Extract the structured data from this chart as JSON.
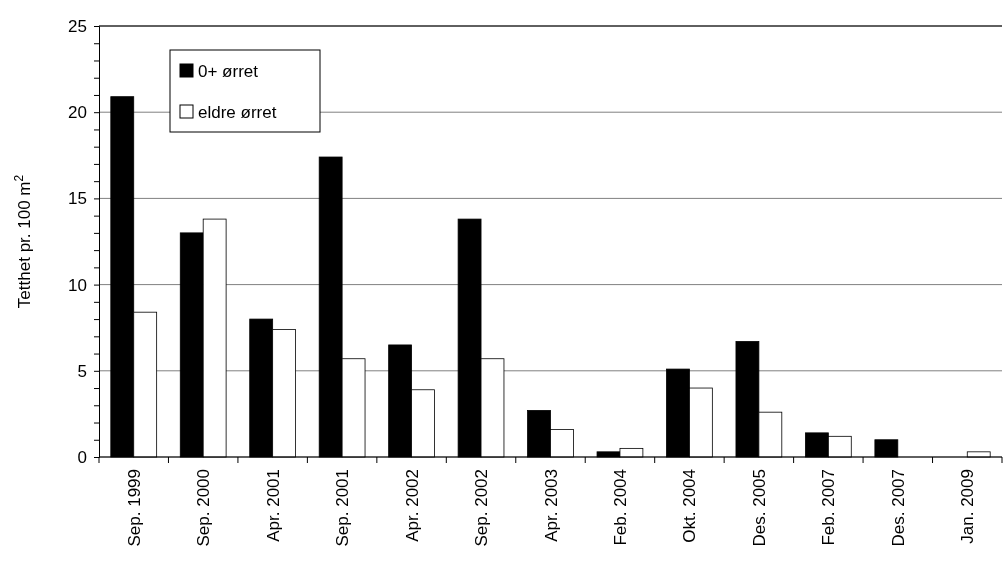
{
  "chart_data": {
    "type": "bar",
    "ylabel": "Tetthet pr. 100 m$^{2}$",
    "categories": [
      "Sep. 1999",
      "Sep. 2000",
      "Apr. 2001",
      "Sep. 2001",
      "Apr. 2002",
      "Sep. 2002",
      "Apr. 2003",
      "Feb. 2004",
      "Okt. 2004",
      "Des. 2005",
      "Feb. 2007",
      "Des. 2007",
      "Jan. 2009"
    ],
    "series": [
      {
        "name": "0+ ørret",
        "color": "#000000",
        "values": [
          20.9,
          13.0,
          8.0,
          17.4,
          6.5,
          13.8,
          2.7,
          0.3,
          5.1,
          6.7,
          1.4,
          1.0,
          0
        ]
      },
      {
        "name": "eldre ørret",
        "color": "#ffffff",
        "values": [
          8.4,
          13.8,
          7.4,
          5.7,
          3.9,
          5.7,
          1.6,
          0.5,
          4.0,
          2.6,
          1.2,
          0,
          0.3
        ]
      }
    ],
    "ylim": [
      0,
      25
    ],
    "yticks": [
      0,
      {
        "value": 1,
        "label": null
      },
      {
        "value": 2,
        "label": null
      },
      {
        "value": 3,
        "label": null
      },
      {
        "value": 4,
        "label": null
      },
      5,
      {
        "value": 6,
        "label": null
      },
      {
        "value": 7,
        "label": null
      },
      {
        "value": 8,
        "label": null
      },
      {
        "value": 9,
        "label": null
      },
      10,
      {
        "value": 11,
        "label": null
      },
      {
        "value": 12,
        "label": null
      },
      {
        "value": 13,
        "label": null
      },
      {
        "value": 14,
        "label": null
      },
      15,
      {
        "value": 16,
        "label": null
      },
      {
        "value": 17,
        "label": null
      },
      {
        "value": 18,
        "label": null
      },
      {
        "value": 19,
        "label": null
      },
      20,
      {
        "value": 21,
        "label": null
      },
      {
        "value": 22,
        "label": null
      },
      {
        "value": 23,
        "label": null
      },
      {
        "value": 24,
        "label": null
      },
      25
    ],
    "grid": "y",
    "legend": "top left"
  }
}
